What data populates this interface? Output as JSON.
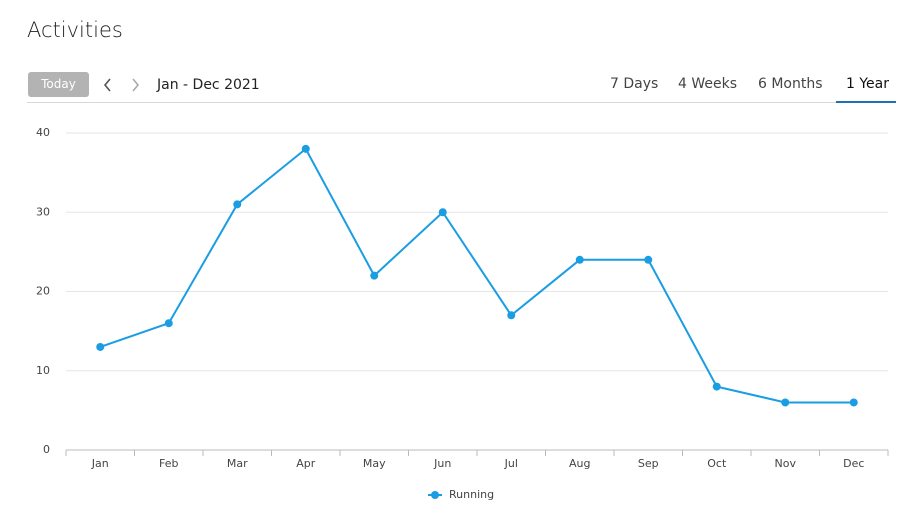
{
  "header": {
    "title": "Activities"
  },
  "toolbar": {
    "today": "Today",
    "range": "Jan - Dec 2021",
    "tabs": [
      "7 Days",
      "4 Weeks",
      "6 Months",
      "1 Year"
    ]
  },
  "chart_data": {
    "type": "line",
    "categories": [
      "Jan",
      "Feb",
      "Mar",
      "Apr",
      "May",
      "Jun",
      "Jul",
      "Aug",
      "Sep",
      "Oct",
      "Nov",
      "Dec"
    ],
    "series": [
      {
        "name": "Running",
        "color": "#1a9de3",
        "values": [
          13,
          16,
          31,
          38,
          22,
          30,
          17,
          24,
          24,
          8,
          6,
          6
        ]
      }
    ],
    "ylim": [
      0,
      40
    ],
    "yticks": [
      0,
      10,
      20,
      30,
      40
    ],
    "grid": true,
    "legend": "bottom"
  }
}
